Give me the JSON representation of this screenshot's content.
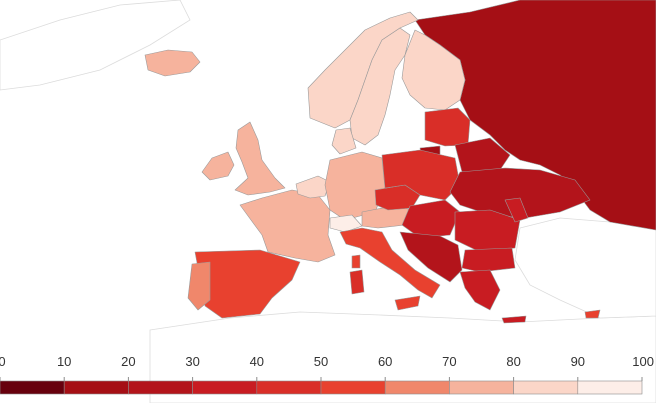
{
  "legend": {
    "ticks": [
      "0",
      "10",
      "20",
      "30",
      "40",
      "50",
      "60",
      "70",
      "80",
      "90",
      "100"
    ],
    "bins": [
      {
        "from": 0,
        "to": 10,
        "color": "#67000d"
      },
      {
        "from": 10,
        "to": 20,
        "color": "#a50f15"
      },
      {
        "from": 20,
        "to": 30,
        "color": "#b3141b"
      },
      {
        "from": 30,
        "to": 40,
        "color": "#c81c22"
      },
      {
        "from": 40,
        "to": 50,
        "color": "#d92e28"
      },
      {
        "from": 50,
        "to": 60,
        "color": "#e8412f"
      },
      {
        "from": 60,
        "to": 70,
        "color": "#f0876b"
      },
      {
        "from": 70,
        "to": 80,
        "color": "#f6b39d"
      },
      {
        "from": 80,
        "to": 90,
        "color": "#fbd6c8"
      },
      {
        "from": 90,
        "to": 100,
        "color": "#fdeee8"
      }
    ]
  },
  "colors": {
    "background": "#ffffff",
    "non_data_land": "#ffffff",
    "border": "#9a9a9a"
  }
}
